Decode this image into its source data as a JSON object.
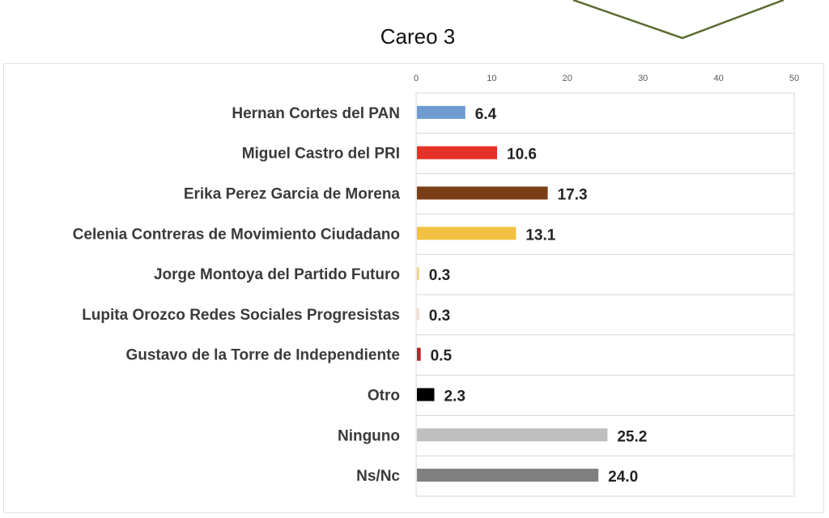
{
  "chart_data": {
    "type": "bar",
    "orientation": "horizontal",
    "title": "Careo 3",
    "xlabel": "",
    "ylabel": "",
    "xlim": [
      0,
      50
    ],
    "x_ticks": [
      "0",
      "10",
      "20",
      "30",
      "40",
      "50"
    ],
    "grid": "horizontal separators",
    "legend": "none",
    "categories": [
      "Hernan Cortes del PAN",
      "Miguel Castro del PRI",
      "Erika Perez Garcia de Morena",
      "Celenia Contreras de Movimiento Ciudadano",
      "Jorge Montoya del Partido Futuro",
      "Lupita Orozco Redes Sociales Progresistas",
      "Gustavo de la Torre de Independiente",
      "Otro",
      "Ninguno",
      "Ns/Nc"
    ],
    "values": [
      6.4,
      10.6,
      17.3,
      13.1,
      0.3,
      0.3,
      0.5,
      2.3,
      25.2,
      24.0
    ],
    "value_labels": [
      "6.4",
      "10.6",
      "17.3",
      "13.1",
      "0.3",
      "0.3",
      "0.5",
      "2.3",
      "25.2",
      "24.0"
    ],
    "colors": [
      "#6f9bd2",
      "#e53228",
      "#7b3f18",
      "#f2c142",
      "#f2d58a",
      "#f5dcd0",
      "#b3262a",
      "#000000",
      "#bfbfbf",
      "#808080"
    ]
  },
  "decoration": {
    "accent_line_color": "#5a6b2f"
  }
}
